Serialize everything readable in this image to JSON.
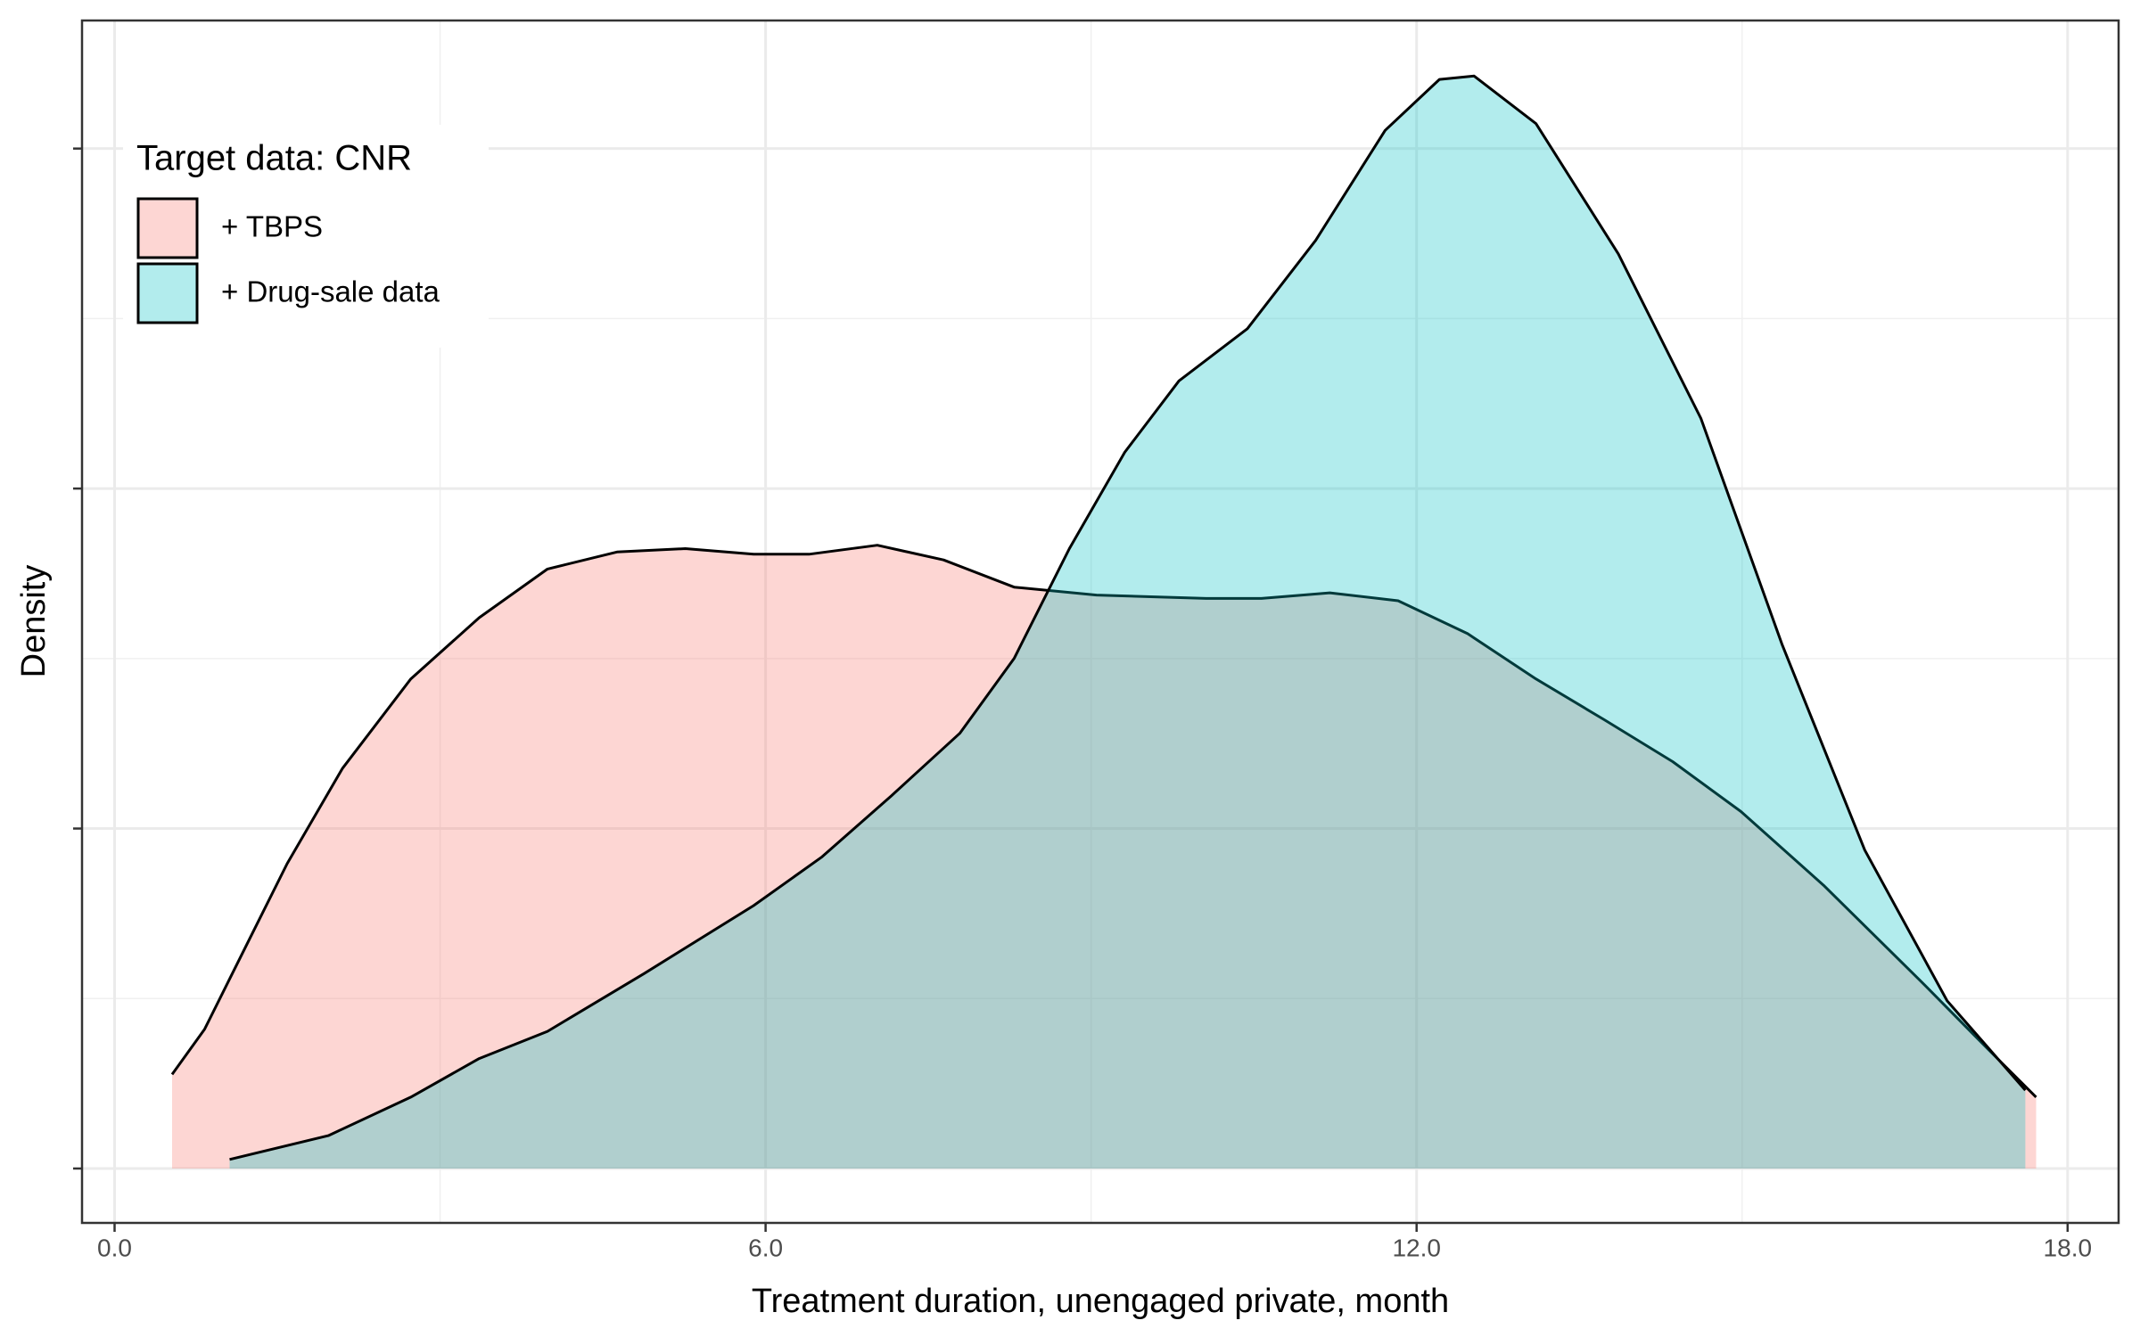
{
  "chart_data": {
    "type": "density",
    "x_label": "Treatment duration, unengaged private, month",
    "y_label": "Density",
    "legend_title": "Target data: CNR",
    "legend_position": "top-left",
    "grid": true,
    "xlim": [
      -0.3,
      18.47
    ],
    "ylim": [
      -0.0048,
      0.1013
    ],
    "xticks": [
      {
        "value": 0,
        "label": "0.0"
      },
      {
        "value": 6,
        "label": "6.0"
      },
      {
        "value": 12,
        "label": "12.0"
      },
      {
        "value": 18,
        "label": "18.0"
      }
    ],
    "yticks": [
      0,
      0.03,
      0.06,
      0.09
    ],
    "series": [
      {
        "name": "+ TBPS",
        "color": "#F8766D",
        "x": [
          0.53,
          0.83,
          1.21,
          1.59,
          2.1,
          2.73,
          3.36,
          3.99,
          4.63,
          5.26,
          5.89,
          6.4,
          7.03,
          7.64,
          8.29,
          9.05,
          10.06,
          10.57,
          11.2,
          11.83,
          12.47,
          13.1,
          13.73,
          14.36,
          14.99,
          15.75,
          16.64,
          17.27,
          17.71
        ],
        "values": [
          0.0083,
          0.0123,
          0.0196,
          0.0269,
          0.0353,
          0.0432,
          0.0486,
          0.0529,
          0.0544,
          0.0547,
          0.0542,
          0.0542,
          0.055,
          0.0537,
          0.0513,
          0.0506,
          0.0503,
          0.0503,
          0.0508,
          0.0501,
          0.0472,
          0.0432,
          0.0396,
          0.0359,
          0.0315,
          0.025,
          0.0166,
          0.0105,
          0.0063
        ]
      },
      {
        "name": "+ Drug-sale data",
        "color": "#00BFC4",
        "x": [
          1.06,
          1.97,
          2.73,
          3.36,
          3.99,
          4.88,
          5.89,
          6.52,
          7.16,
          7.79,
          8.29,
          8.8,
          9.31,
          9.81,
          10.44,
          11.07,
          11.71,
          12.21,
          12.53,
          13.1,
          13.86,
          14.62,
          15.37,
          16.13,
          16.89,
          17.61
        ],
        "values": [
          0.0008,
          0.0029,
          0.0063,
          0.0097,
          0.0121,
          0.0172,
          0.0232,
          0.0275,
          0.0329,
          0.0384,
          0.045,
          0.0547,
          0.0632,
          0.0695,
          0.0741,
          0.0819,
          0.0916,
          0.0961,
          0.0964,
          0.0922,
          0.0807,
          0.0662,
          0.0462,
          0.0281,
          0.0148,
          0.0069
        ]
      }
    ]
  }
}
